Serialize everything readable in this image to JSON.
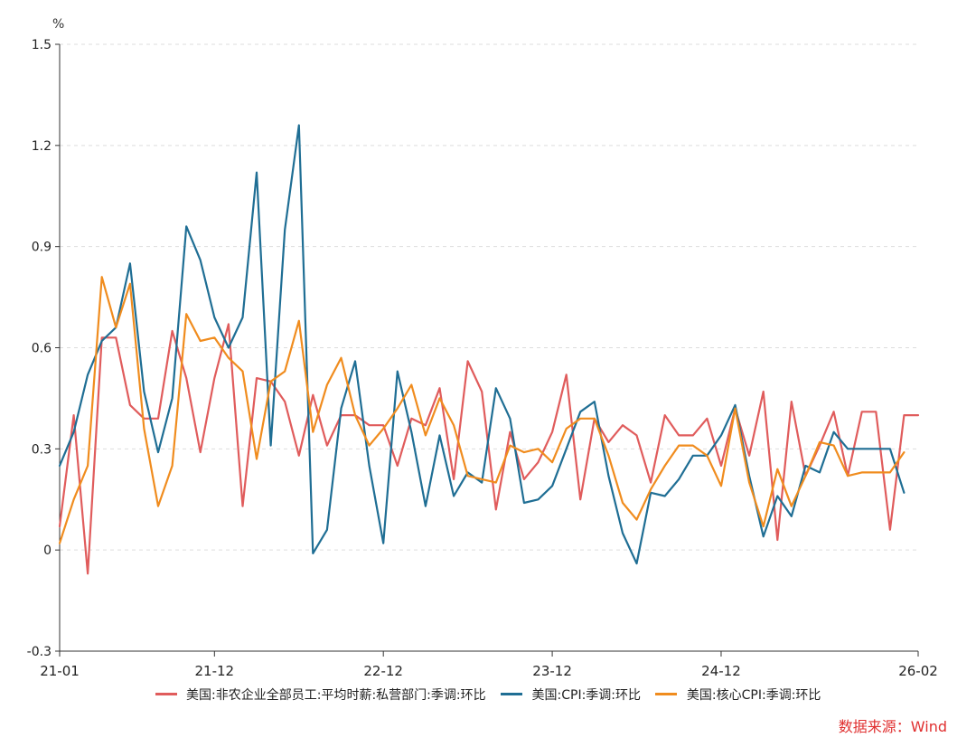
{
  "chart_data": {
    "type": "line",
    "unit": "%",
    "x_ticks": [
      "21-01",
      "21-12",
      "22-12",
      "23-12",
      "24-12",
      "26-02"
    ],
    "y_ticks": [
      "1.5",
      "1.2",
      "0.9",
      "0.6",
      "0.3",
      "0",
      "-0.3"
    ],
    "ylim": [
      -0.3,
      1.5
    ],
    "xlim": [
      0,
      61
    ],
    "grid": "horizontal dashed",
    "legend_position": "bottom",
    "series": [
      {
        "name": "美国:非农企业全部员工:平均时薪:私营部门:季调:环比",
        "color": "#e05c5c",
        "x": [
          0,
          1,
          2,
          3,
          4,
          5,
          6,
          7,
          8,
          9,
          10,
          11,
          12,
          13,
          14,
          15,
          16,
          17,
          18,
          19,
          20,
          21,
          22,
          23,
          24,
          25,
          26,
          27,
          28,
          29,
          30,
          31,
          32,
          33,
          34,
          35,
          36,
          37,
          38,
          39,
          40,
          41,
          42,
          43,
          44,
          45,
          46,
          47,
          48,
          49,
          50,
          51,
          52,
          53,
          54,
          55,
          56,
          57,
          58,
          59,
          60,
          61
        ],
        "values": [
          0.07,
          0.4,
          -0.07,
          0.63,
          0.63,
          0.43,
          0.39,
          0.39,
          0.65,
          0.51,
          0.29,
          0.51,
          0.67,
          0.13,
          0.51,
          0.5,
          0.44,
          0.28,
          0.46,
          0.31,
          0.4,
          0.4,
          0.37,
          0.37,
          0.25,
          0.39,
          0.37,
          0.48,
          0.21,
          0.56,
          0.47,
          0.12,
          0.35,
          0.21,
          0.26,
          0.35,
          0.52,
          0.15,
          0.39,
          0.32,
          0.37,
          0.34,
          0.2,
          0.4,
          0.34,
          0.34,
          0.39,
          0.25,
          0.42,
          0.28,
          0.47,
          0.03,
          0.44,
          0.22,
          0.31,
          0.41,
          0.22,
          0.41,
          0.41,
          0.06,
          0.4,
          0.4
        ]
      },
      {
        "name": "美国:CPI:季调:环比",
        "color": "#1f6e94",
        "x": [
          0,
          1,
          2,
          3,
          4,
          5,
          6,
          7,
          8,
          9,
          10,
          11,
          12,
          13,
          14,
          15,
          16,
          17,
          18,
          19,
          20,
          21,
          22,
          23,
          24,
          25,
          26,
          27,
          28,
          29,
          30,
          31,
          32,
          33,
          34,
          35,
          36,
          37,
          38,
          39,
          40,
          41,
          42,
          43,
          44,
          45,
          46,
          47,
          48,
          49,
          50,
          51,
          52,
          53,
          54,
          55,
          56,
          57,
          58,
          59,
          60
        ],
        "values": [
          0.25,
          0.35,
          0.52,
          0.62,
          0.66,
          0.85,
          0.47,
          0.29,
          0.45,
          0.96,
          0.86,
          0.69,
          0.6,
          0.69,
          1.12,
          0.31,
          0.95,
          1.26,
          -0.01,
          0.06,
          0.42,
          0.56,
          0.25,
          0.02,
          0.53,
          0.35,
          0.13,
          0.34,
          0.16,
          0.23,
          0.2,
          0.48,
          0.39,
          0.14,
          0.15,
          0.19,
          0.3,
          0.41,
          0.44,
          0.22,
          0.05,
          -0.04,
          0.17,
          0.16,
          0.21,
          0.28,
          0.28,
          0.34,
          0.43,
          0.22,
          0.04,
          0.16,
          0.1,
          0.25,
          0.23,
          0.35,
          0.3,
          0.3,
          0.3,
          0.3,
          0.17
        ]
      },
      {
        "name": "美国:核心CPI:季调:环比",
        "color": "#f08c1e",
        "x": [
          0,
          1,
          2,
          3,
          4,
          5,
          6,
          7,
          8,
          9,
          10,
          11,
          12,
          13,
          14,
          15,
          16,
          17,
          18,
          19,
          20,
          21,
          22,
          23,
          24,
          25,
          26,
          27,
          28,
          29,
          30,
          31,
          32,
          33,
          34,
          35,
          36,
          37,
          38,
          39,
          40,
          41,
          42,
          43,
          44,
          45,
          46,
          47,
          48,
          49,
          50,
          51,
          52,
          53,
          54,
          55,
          56,
          57,
          58,
          59,
          60
        ],
        "values": [
          0.02,
          0.15,
          0.25,
          0.81,
          0.66,
          0.79,
          0.36,
          0.13,
          0.25,
          0.7,
          0.62,
          0.63,
          0.57,
          0.53,
          0.27,
          0.5,
          0.53,
          0.68,
          0.35,
          0.49,
          0.57,
          0.4,
          0.31,
          0.36,
          0.42,
          0.49,
          0.34,
          0.45,
          0.37,
          0.22,
          0.21,
          0.2,
          0.31,
          0.29,
          0.3,
          0.26,
          0.36,
          0.39,
          0.39,
          0.28,
          0.14,
          0.09,
          0.18,
          0.25,
          0.31,
          0.31,
          0.28,
          0.19,
          0.42,
          0.2,
          0.07,
          0.24,
          0.13,
          0.22,
          0.32,
          0.31,
          0.22,
          0.23,
          0.23,
          0.23,
          0.29
        ]
      }
    ]
  },
  "source_text": "数据来源：Wind"
}
